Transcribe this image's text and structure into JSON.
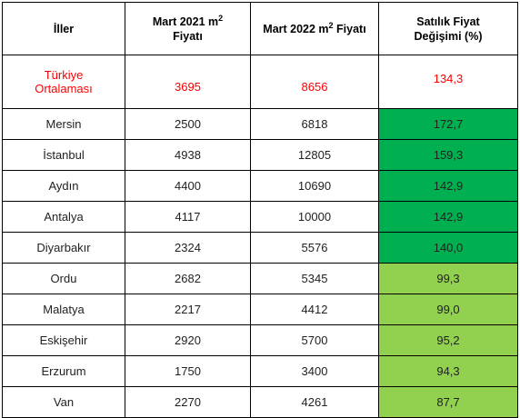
{
  "colors": {
    "dark_green": "#00b050",
    "light_green": "#92d050",
    "average_text": "#ff0000"
  },
  "header": {
    "col1": "İller",
    "col2_prefix": "Mart 2021 m",
    "col2_sup": "2",
    "col2_suffix": "Fiyatı",
    "col3_prefix": "Mart 2022 m",
    "col3_sup": "2",
    "col3_suffix": "Fiyatı",
    "col4_line1": "Satılık Fiyat",
    "col4_line2": "Değişimi (%)"
  },
  "average": {
    "city_line1": "Türkiye",
    "city_line2": "Ortalaması",
    "price_2021": "3695",
    "price_2022": "8656",
    "change": "134,3"
  },
  "rows": [
    {
      "city": "Mersin",
      "price_2021": "2500",
      "price_2022": "6818",
      "change": "172,7",
      "color": "dark"
    },
    {
      "city": "İstanbul",
      "price_2021": "4938",
      "price_2022": "12805",
      "change": "159,3",
      "color": "dark"
    },
    {
      "city": "Aydın",
      "price_2021": "4400",
      "price_2022": "10690",
      "change": "142,9",
      "color": "dark"
    },
    {
      "city": "Antalya",
      "price_2021": "4117",
      "price_2022": "10000",
      "change": "142,9",
      "color": "dark"
    },
    {
      "city": "Diyarbakır",
      "price_2021": "2324",
      "price_2022": "5576",
      "change": "140,0",
      "color": "dark"
    },
    {
      "city": "Ordu",
      "price_2021": "2682",
      "price_2022": "5345",
      "change": "99,3",
      "color": "light"
    },
    {
      "city": "Malatya",
      "price_2021": "2217",
      "price_2022": "4412",
      "change": "99,0",
      "color": "light"
    },
    {
      "city": "Eskişehir",
      "price_2021": "2920",
      "price_2022": "5700",
      "change": "95,2",
      "color": "light"
    },
    {
      "city": "Erzurum",
      "price_2021": "1750",
      "price_2022": "3400",
      "change": "94,3",
      "color": "light"
    },
    {
      "city": "Van",
      "price_2021": "2270",
      "price_2022": "4261",
      "change": "87,7",
      "color": "light"
    }
  ]
}
